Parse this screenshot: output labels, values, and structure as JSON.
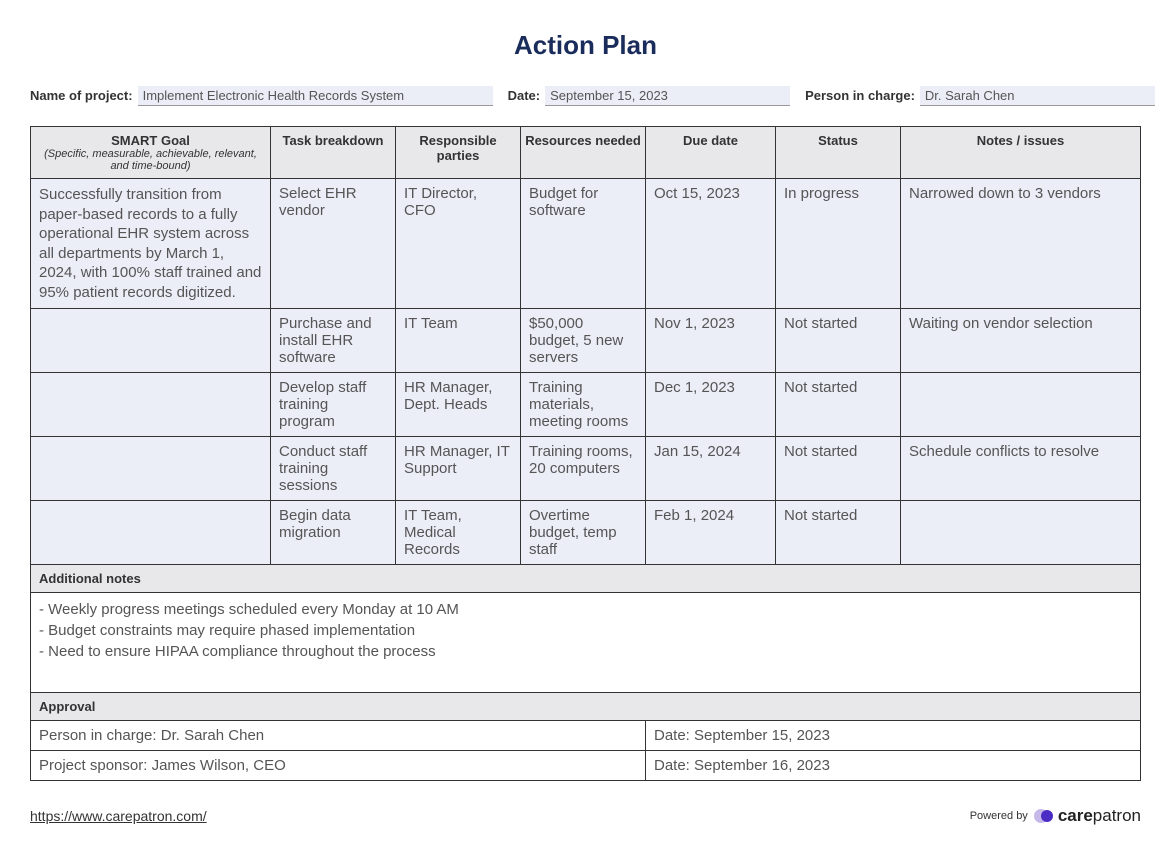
{
  "title": "Action Plan",
  "header": {
    "project_label": "Name of project:",
    "project_value": "Implement Electronic Health Records System",
    "date_label": "Date:",
    "date_value": "September 15, 2023",
    "person_label": "Person in charge:",
    "person_value": "Dr. Sarah Chen"
  },
  "columns": {
    "smart": "SMART Goal",
    "smart_sub": "(Specific, measurable, achievable, relevant, and time-bound)",
    "task": "Task breakdown",
    "resp": "Responsible parties",
    "res": "Resources needed",
    "due": "Due date",
    "status": "Status",
    "notes": "Notes / issues"
  },
  "smart_goal": "Successfully transition from paper-based records to a fully operational EHR system across all departments by March 1, 2024, with 100% staff trained and 95% patient records digitized.",
  "rows": [
    {
      "task": "Select EHR vendor",
      "resp": "IT Director, CFO",
      "res": " Budget for software",
      "due": "Oct 15, 2023",
      "status": "In progress",
      "notes": "Narrowed down to 3 vendors"
    },
    {
      "task": "Purchase and install EHR software",
      "resp": "IT Team",
      "res": "$50,000 budget, 5 new servers",
      "due": "Nov 1, 2023",
      "status": "Not started",
      "notes": "Waiting on vendor selection"
    },
    {
      "task": "Develop staff training program",
      "resp": "HR Manager, Dept. Heads",
      "res": "Training materials, meeting rooms",
      "due": "Dec 1, 2023",
      "status": "Not started",
      "notes": ""
    },
    {
      "task": "Conduct staff training sessions",
      "resp": "HR Manager, IT Support",
      "res": "Training rooms, 20 computers",
      "due": " Jan 15, 2024",
      "status": "Not started",
      "notes": "Schedule conflicts to resolve"
    },
    {
      "task": "Begin data migration",
      "resp": "IT Team, Medical Records",
      "res": "Overtime budget, temp staff",
      "due": "Feb 1, 2024",
      "status": "Not started",
      "notes": ""
    }
  ],
  "additional_notes_label": "Additional notes",
  "additional_notes": "- Weekly progress meetings scheduled every Monday at 10 AM\n- Budget constraints may require phased implementation\n- Need to ensure HIPAA compliance throughout the process",
  "approval_label": "Approval",
  "approval": {
    "pic_label": "Person in charge:",
    "pic_value": "Dr. Sarah Chen",
    "pic_date_label": "Date:",
    "pic_date_value": "September 15, 2023",
    "sponsor_label": "Project sponsor:",
    "sponsor_value": "James Wilson, CEO",
    "sponsor_date_label": "Date:",
    "sponsor_date_value": "September 16, 2023"
  },
  "footer": {
    "url": "https://www.carepatron.com/",
    "powered_by": "Powered by",
    "brand": "carepatron"
  },
  "colors": {
    "heading": "#1a2c5b",
    "row_bg": "#ebedf7",
    "header_bg": "#e8e8ea",
    "border": "#333333"
  }
}
